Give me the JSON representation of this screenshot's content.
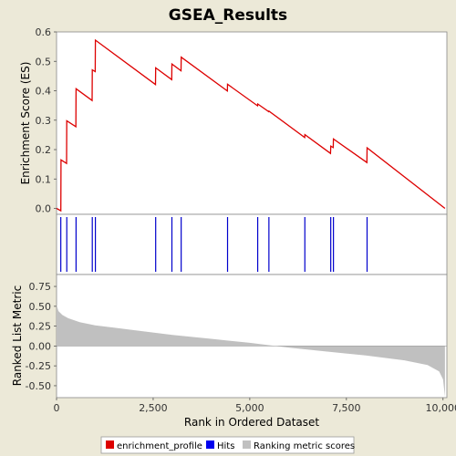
{
  "chart_data": {
    "type": "line",
    "title": "GSEA_Results",
    "xlabel": "Rank in Ordered Dataset",
    "top_panel": {
      "ylabel": "Enrichment Score (ES)",
      "ylim": [
        -0.02,
        0.6
      ],
      "yticks": [
        0.0,
        0.1,
        0.2,
        0.3,
        0.4,
        0.5,
        0.6
      ],
      "ytick_labels": [
        "0.0",
        "0.1",
        "0.2",
        "0.3",
        "0.4",
        "0.5",
        "0.6"
      ],
      "series": [
        {
          "name": "enrichment_profile",
          "color": "#dd0000",
          "points": [
            [
              0,
              0.0
            ],
            [
              110,
              -0.008
            ],
            [
              115,
              0.165
            ],
            [
              260,
              0.153
            ],
            [
              265,
              0.298
            ],
            [
              500,
              0.278
            ],
            [
              505,
              0.407
            ],
            [
              920,
              0.367
            ],
            [
              925,
              0.471
            ],
            [
              1000,
              0.465
            ],
            [
              1005,
              0.572
            ],
            [
              2560,
              0.421
            ],
            [
              2565,
              0.478
            ],
            [
              2980,
              0.438
            ],
            [
              2985,
              0.491
            ],
            [
              3220,
              0.468
            ],
            [
              3225,
              0.514
            ],
            [
              4420,
              0.399
            ],
            [
              4425,
              0.422
            ],
            [
              5200,
              0.349
            ],
            [
              5205,
              0.355
            ],
            [
              5490,
              0.329
            ],
            [
              5495,
              0.331
            ],
            [
              6420,
              0.241
            ],
            [
              6425,
              0.251
            ],
            [
              7090,
              0.187
            ],
            [
              7095,
              0.212
            ],
            [
              7160,
              0.207
            ],
            [
              7165,
              0.236
            ],
            [
              8030,
              0.156
            ],
            [
              8035,
              0.206
            ],
            [
              10050,
              0.0
            ]
          ]
        }
      ]
    },
    "hits": [
      110,
      265,
      505,
      925,
      1005,
      2565,
      2985,
      3225,
      4425,
      5205,
      5495,
      6425,
      7095,
      7165,
      8035
    ],
    "hits_color": "#0000cc",
    "bottom_panel": {
      "ylabel": "Ranked List Metric",
      "ylim": [
        -0.65,
        0.9
      ],
      "yticks": [
        -0.5,
        -0.25,
        0.0,
        0.25,
        0.5,
        0.75
      ],
      "ytick_labels": [
        "-0.50",
        "-0.25",
        "0.00",
        "0.25",
        "0.50",
        "0.75"
      ],
      "fill_color": "#c0c0c0",
      "metric_curve": [
        [
          0,
          0.52
        ],
        [
          50,
          0.44
        ],
        [
          150,
          0.39
        ],
        [
          300,
          0.35
        ],
        [
          600,
          0.3
        ],
        [
          1000,
          0.26
        ],
        [
          2000,
          0.2
        ],
        [
          3000,
          0.14
        ],
        [
          4000,
          0.09
        ],
        [
          5000,
          0.04
        ],
        [
          5500,
          0.01
        ],
        [
          6000,
          -0.02
        ],
        [
          7000,
          -0.07
        ],
        [
          8000,
          -0.12
        ],
        [
          9000,
          -0.18
        ],
        [
          9600,
          -0.24
        ],
        [
          9900,
          -0.32
        ],
        [
          10000,
          -0.42
        ],
        [
          10050,
          -0.64
        ]
      ]
    },
    "xlim": [
      0,
      10100
    ],
    "xticks": [
      0,
      2500,
      5000,
      7500,
      10000
    ],
    "xtick_labels": [
      "0",
      "2,500",
      "5,000",
      "7,500",
      "10,000"
    ],
    "legend": {
      "placement": "bottom",
      "entries": [
        {
          "label": "enrichment_profile",
          "color": "#dd0000"
        },
        {
          "label": "Hits",
          "color": "#0000ee"
        },
        {
          "label": "Ranking metric scores",
          "color": "#c0c0c0"
        }
      ]
    }
  }
}
